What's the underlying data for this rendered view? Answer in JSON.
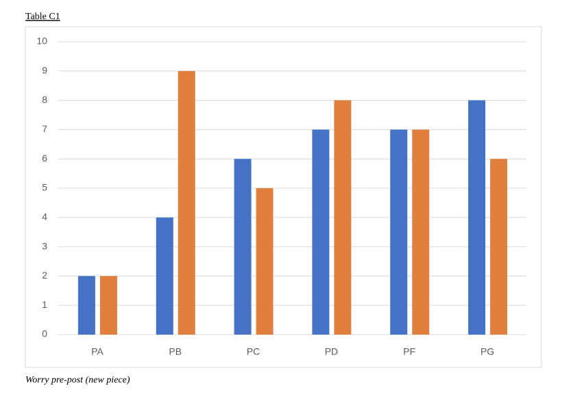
{
  "heading": "Table C1",
  "caption": "Worry pre-post (new piece)",
  "chart_data": {
    "type": "bar",
    "categories": [
      "PA",
      "PB",
      "PC",
      "PD",
      "PF",
      "PG"
    ],
    "series": [
      {
        "color": "#4472c4",
        "values": [
          2,
          4,
          6,
          7,
          7,
          8
        ]
      },
      {
        "color": "#e07f3e",
        "values": [
          2,
          9,
          5,
          8,
          7,
          6
        ]
      }
    ],
    "ylim": [
      0,
      10
    ],
    "yticks": [
      0,
      1,
      2,
      3,
      4,
      5,
      6,
      7,
      8,
      9,
      10
    ],
    "grid": true
  }
}
